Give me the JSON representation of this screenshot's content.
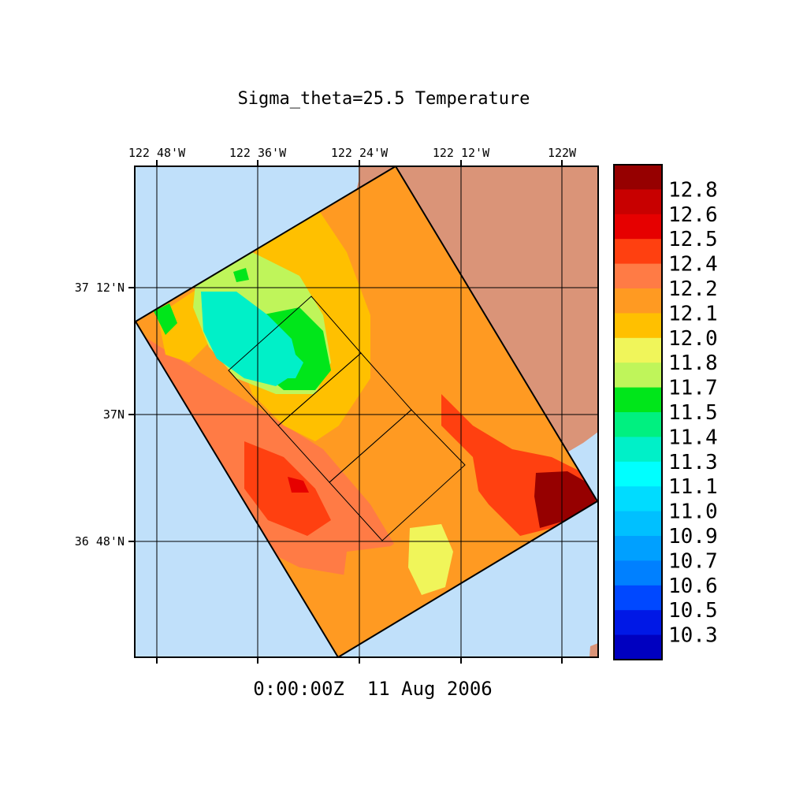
{
  "title": "Sigma_theta=25.5 Temperature",
  "timestamp": "0:00:00Z  11 Aug 2006",
  "x_ticks": [
    "122 48'W",
    "122 36'W",
    "122 24'W",
    "122 12'W",
    "122W"
  ],
  "y_ticks": [
    "37 12'N",
    "37N",
    "36 48'N"
  ],
  "colorbar": {
    "labels": [
      "12.8",
      "12.6",
      "12.5",
      "12.4",
      "12.2",
      "12.1",
      "12.0",
      "11.8",
      "11.7",
      "11.5",
      "11.4",
      "11.3",
      "11.1",
      "11.0",
      "10.9",
      "10.7",
      "10.6",
      "10.5",
      "10.3"
    ],
    "colors": [
      "#960000",
      "#c80000",
      "#e60000",
      "#ff4010",
      "#ff7b45",
      "#ff9a22",
      "#ffc000",
      "#f0f55a",
      "#bff55a",
      "#00e61a",
      "#00f080",
      "#00f0c8",
      "#00ffff",
      "#00dcff",
      "#00c0ff",
      "#00a0ff",
      "#0080ff",
      "#0048ff",
      "#0018e6",
      "#0000c0"
    ]
  },
  "colors": {
    "ocean": "#c0e0fa",
    "land": "#da9478",
    "field_base": "#ff9a22"
  }
}
